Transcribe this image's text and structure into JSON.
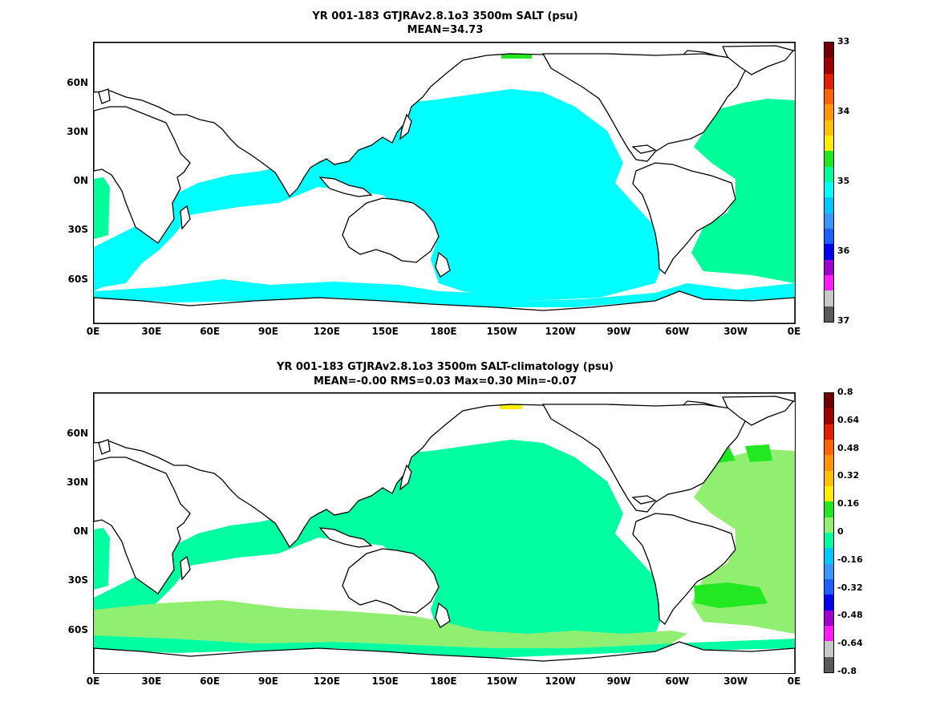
{
  "panels": [
    {
      "title_line1": "YR 001-183 GTJRAv2.8.1o3 3500m SALT (psu)",
      "title_line2": "MEAN=34.73",
      "colorbar": {
        "colors": [
          "#5a5a5a",
          "#c8c8c8",
          "#ff1aff",
          "#a000d0",
          "#0000ee",
          "#1e5fff",
          "#3c96ff",
          "#00c8ff",
          "#00ffff",
          "#00ff9a",
          "#22e822",
          "#ffee00",
          "#ffc000",
          "#ff9600",
          "#ff6400",
          "#e02000",
          "#a00000",
          "#700000"
        ],
        "labels": [
          "33",
          "34",
          "35",
          "36",
          "37"
        ]
      }
    },
    {
      "title_line1": "YR 001-183 GTJRAv2.8.1o3 3500m SALT-climatology (psu)",
      "title_line2": "MEAN=-0.00   RMS=0.03   Max=0.30   Min=-0.07",
      "colorbar": {
        "colors": [
          "#5a5a5a",
          "#c8c8c8",
          "#ff1aff",
          "#a000d0",
          "#0000ee",
          "#1e5fff",
          "#3c96ff",
          "#00c8ff",
          "#00ffa0",
          "#90ee70",
          "#22e822",
          "#ffee00",
          "#ffc000",
          "#ff9600",
          "#ff6400",
          "#e02000",
          "#a00000",
          "#700000"
        ],
        "labels": [
          "0.8",
          "0.64",
          "0.48",
          "0.32",
          "0.16",
          "0",
          "-0.16",
          "-0.32",
          "-0.48",
          "-0.64",
          "-0.8"
        ]
      }
    }
  ],
  "axes": {
    "x_ticks": [
      "0E",
      "30E",
      "60E",
      "90E",
      "120E",
      "150E",
      "180E",
      "150W",
      "120W",
      "90W",
      "60W",
      "30W",
      "0E"
    ],
    "y_ticks": [
      "60N",
      "30N",
      "0N",
      "30S",
      "60S"
    ]
  },
  "colors": {
    "land": "#ffffff",
    "coast": "#000000",
    "top_field_main": "#00ffff",
    "top_field_atlantic": "#00ff9a",
    "top_field_high": "#22e822",
    "bottom_field_main": "#00ffa0",
    "bottom_field_light": "#90ee70",
    "bottom_field_high": "#22e822",
    "bottom_field_yellow": "#ffee00"
  }
}
